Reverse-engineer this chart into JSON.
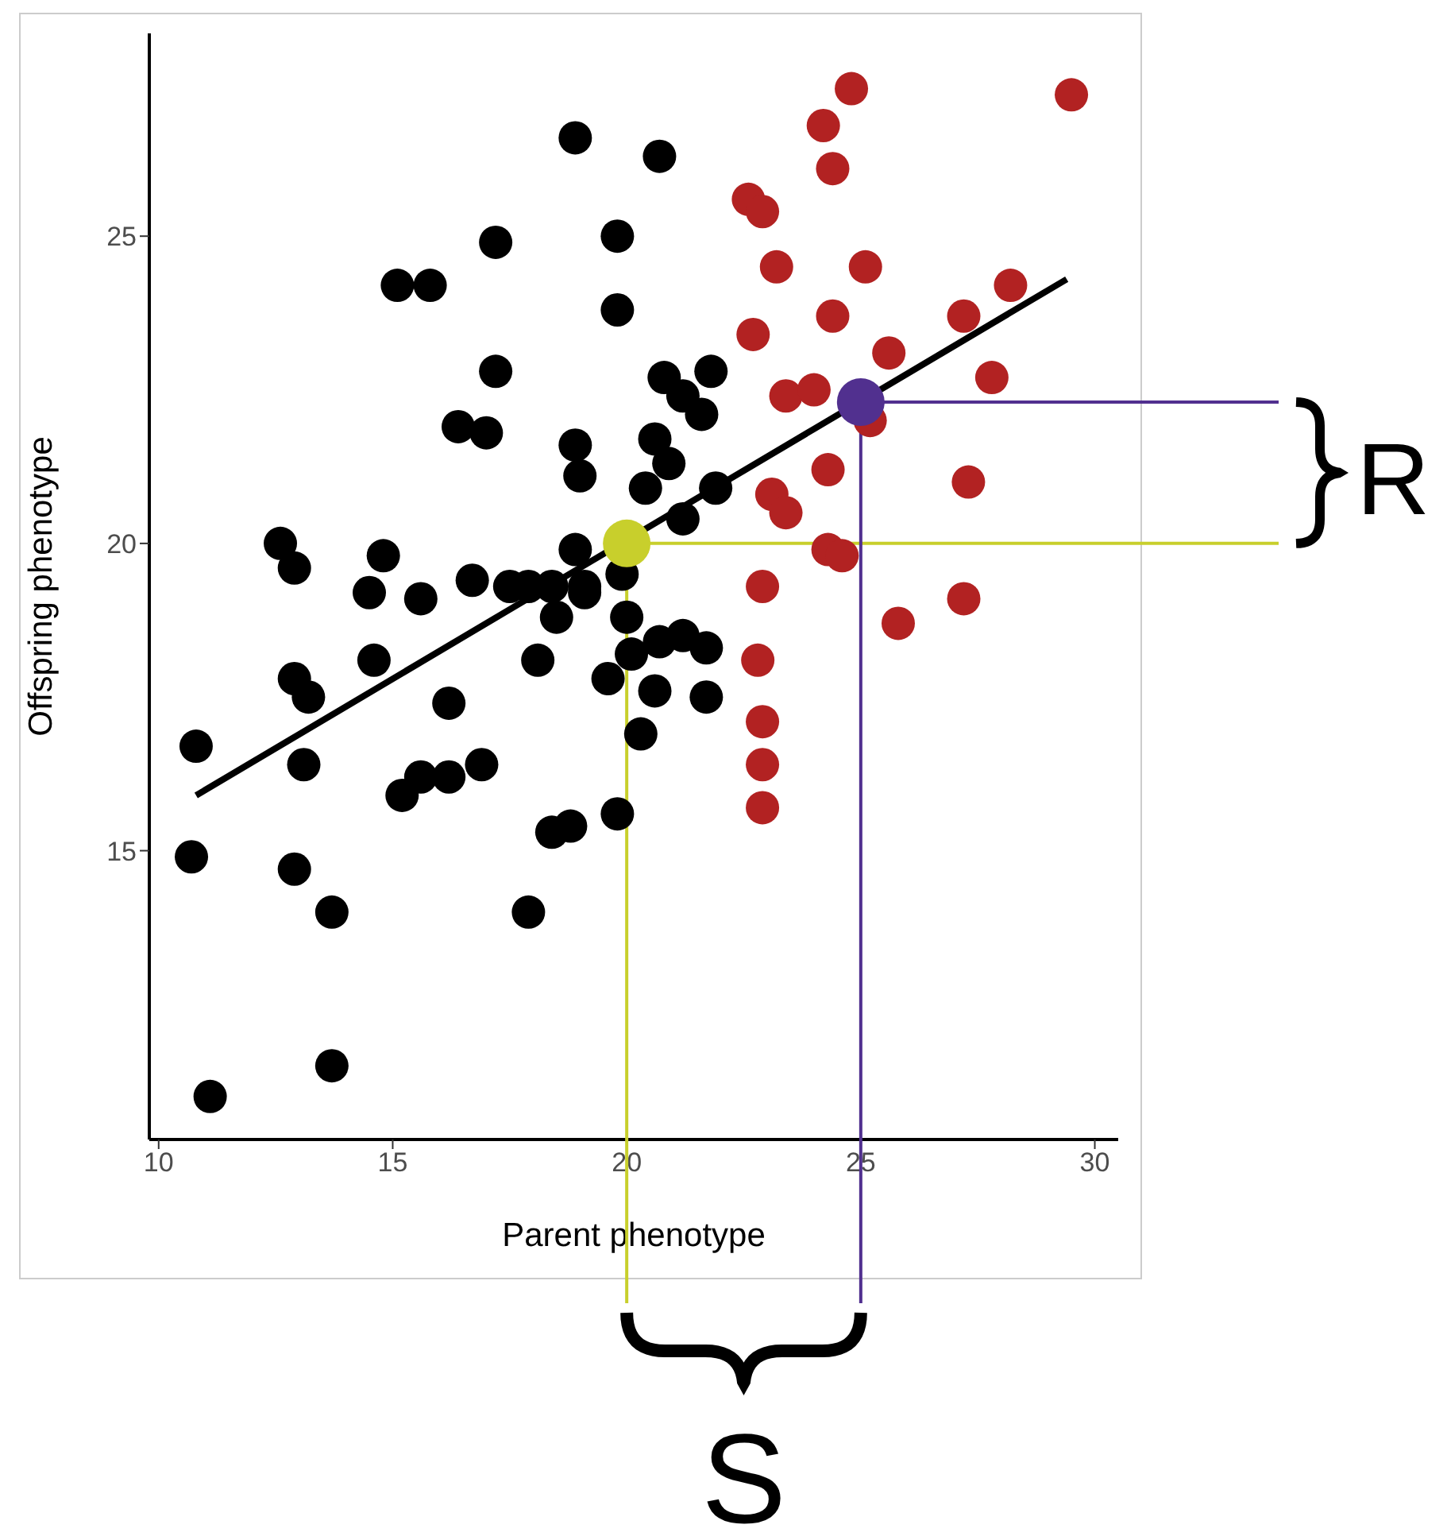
{
  "chart_data": {
    "type": "scatter",
    "xlabel": "Parent phenotype",
    "ylabel": "Offspring phenotype",
    "xlim": [
      9.8,
      30.5
    ],
    "ylim": [
      10.3,
      28.3
    ],
    "xticks": [
      10,
      15,
      20,
      25,
      30
    ],
    "yticks": [
      15,
      20,
      25
    ],
    "grid": false,
    "legend": false,
    "annotations": [
      "S",
      "R"
    ],
    "series": [
      {
        "marker": "circle",
        "color": "#000000",
        "x": [
          10.8,
          10.7,
          11.1,
          12.6,
          12.9,
          12.9,
          13.2,
          13.1,
          12.9,
          13.7,
          13.7,
          14.5,
          14.8,
          14.6,
          15.6,
          15.6,
          15.2,
          15.1,
          15.8,
          17.2,
          16.2,
          16.2,
          16.7,
          16.9,
          17.2,
          17.0,
          16.4,
          17.5,
          17.9,
          18.1,
          18.4,
          18.8,
          18.4,
          18.5,
          17.9,
          18.9,
          18.9,
          19.0,
          18.9,
          19.1,
          19.1,
          20.8,
          21.8,
          21.2,
          21.6,
          20.6,
          20.9,
          20.4,
          21.9,
          21.2,
          19.9,
          20.0,
          20.1,
          20.7,
          21.2,
          21.7,
          19.6,
          20.6,
          21.7,
          20.3,
          19.8,
          20.7,
          19.8,
          19.8
        ],
        "values": [
          16.7,
          14.9,
          11.0,
          20.0,
          19.6,
          17.8,
          17.5,
          16.4,
          14.7,
          14.0,
          11.5,
          19.2,
          19.8,
          18.1,
          19.1,
          16.2,
          15.9,
          24.2,
          24.2,
          24.9,
          17.4,
          16.2,
          19.4,
          16.4,
          22.8,
          21.8,
          21.9,
          19.3,
          19.3,
          18.1,
          15.3,
          15.4,
          19.3,
          18.8,
          14.0,
          26.6,
          21.6,
          21.1,
          19.9,
          19.3,
          19.2,
          22.7,
          22.8,
          22.4,
          22.1,
          21.7,
          21.3,
          20.9,
          20.9,
          20.4,
          19.5,
          18.8,
          18.2,
          18.4,
          18.5,
          18.3,
          17.8,
          17.6,
          17.5,
          16.9,
          15.6,
          26.3,
          25.0,
          23.8
        ]
      },
      {
        "marker": "circle",
        "color": "#b22222",
        "x": [
          24.8,
          24.2,
          24.4,
          22.6,
          22.9,
          29.5,
          23.2,
          25.1,
          24.4,
          22.7,
          27.2,
          28.2,
          25.6,
          27.8,
          23.4,
          24.0,
          25.2,
          24.3,
          27.3,
          23.1,
          23.4,
          24.3,
          24.6,
          22.9,
          25.8,
          27.2,
          22.8,
          22.9,
          22.9,
          22.9
        ],
        "values": [
          27.4,
          26.8,
          26.1,
          25.6,
          25.4,
          27.3,
          24.5,
          24.5,
          23.7,
          23.4,
          23.7,
          24.2,
          23.1,
          22.7,
          22.4,
          22.5,
          22.0,
          21.2,
          21.0,
          20.8,
          20.5,
          19.9,
          19.8,
          19.3,
          18.7,
          19.1,
          18.1,
          17.1,
          16.4,
          15.7
        ]
      },
      {
        "type": "line",
        "marker": "none",
        "color": "#000000",
        "x": [
          10.8,
          29.4
        ],
        "values": [
          15.9,
          24.3
        ]
      },
      {
        "type": "line",
        "marker": "none",
        "color": "#c8cf2c",
        "x": [
          20.0,
          20.0,
          30.5
        ],
        "values": [
          10.3,
          20.0,
          20.0
        ]
      },
      {
        "type": "line",
        "marker": "none",
        "color": "#51308f",
        "x": [
          25.0,
          25.0,
          30.5
        ],
        "values": [
          10.3,
          22.3,
          22.3
        ]
      },
      {
        "marker": "circle",
        "color": "#c8cf2c",
        "x": [
          20.0
        ],
        "values": [
          20.0
        ]
      },
      {
        "marker": "circle",
        "color": "#51308f",
        "x": [
          25.0
        ],
        "values": [
          22.3
        ]
      }
    ]
  }
}
